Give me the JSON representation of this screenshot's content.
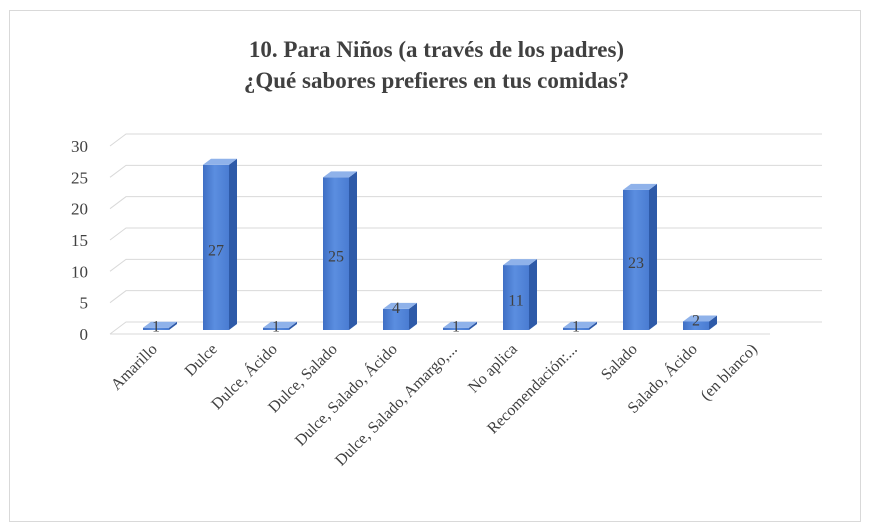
{
  "chart_data": {
    "type": "bar",
    "title": "10. Para Niños (a través de los padres)",
    "subtitle": "¿Qué sabores prefieres en tus comidas?",
    "categories": [
      "Amarillo",
      "Dulce",
      "Dulce, Ácido",
      "Dulce, Salado",
      "Dulce, Salado, Ácido",
      "Dulce, Salado, Amargo,...",
      "No aplica",
      "Recomendación:...",
      "Salado",
      "Salado, Ácido",
      "(en blanco)"
    ],
    "values": [
      1,
      27,
      1,
      25,
      4,
      1,
      11,
      1,
      23,
      2,
      null
    ],
    "data_labels": [
      "1",
      "27",
      "1",
      "25",
      "4",
      "1",
      "11",
      "1",
      "23",
      "2",
      ""
    ],
    "y_ticks": [
      0,
      5,
      10,
      15,
      20,
      25,
      30
    ],
    "ylim": [
      0,
      30
    ],
    "xlabel": "",
    "ylabel": "",
    "grid": true,
    "legend": "none",
    "style": "3d-column",
    "colors": {
      "bar_front": "#4f81d6",
      "bar_side": "#2e5aa8",
      "bar_top": "#8fb2ea",
      "grid": "#d9d9d9",
      "text": "#404040"
    }
  }
}
